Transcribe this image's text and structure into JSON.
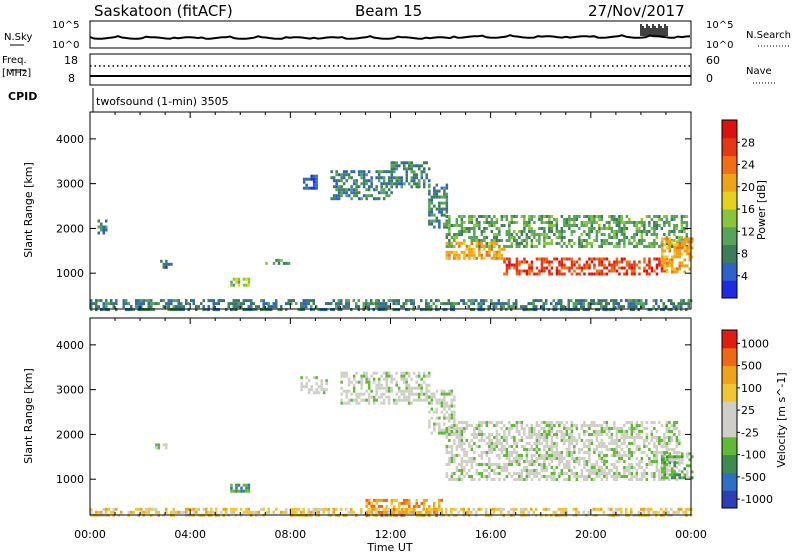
{
  "header": {
    "title": "Saskatoon (fitACF)",
    "beam": "Beam 15",
    "date": "27/Nov/2017"
  },
  "top_strip": {
    "left_label": "N.Sky",
    "left_ticks": [
      "10^5",
      "10^0"
    ],
    "right_label": "N.Search",
    "right_ticks": [
      "10^5",
      "10^0"
    ]
  },
  "freq_strip": {
    "left_label_1": "Freq.",
    "left_label_2": "[MHz]",
    "left_ticks": [
      "18",
      "8"
    ],
    "right_label": "Nave",
    "right_ticks": [
      "60",
      "0"
    ]
  },
  "cpid": {
    "label": "CPID",
    "text": "twofsound (1-min) 3505"
  },
  "chart_data": [
    {
      "type": "heatmap",
      "name": "power-panel",
      "ylabel": "Slant Range [km]",
      "xlabel": "",
      "yticks": [
        "1000",
        "2000",
        "3000",
        "4000"
      ],
      "ylim": [
        200,
        4600
      ],
      "xlim_hours": [
        0,
        24
      ],
      "colorbar": {
        "label": "Power [dB]",
        "ticks": [
          "4",
          "8",
          "12",
          "16",
          "20",
          "24",
          "28"
        ],
        "colors": [
          "#1e2be0",
          "#2e62c9",
          "#3f7d5a",
          "#58a35a",
          "#87c53f",
          "#e6d21e",
          "#f0a21a",
          "#ef6e17",
          "#e23a14",
          "#d9140f"
        ]
      },
      "regions": [
        {
          "t0": 0.0,
          "t1": 24.0,
          "r0": 200,
          "r1": 420,
          "level": 2
        },
        {
          "t0": 0.3,
          "t1": 0.6,
          "r0": 1900,
          "r1": 2200,
          "level": 2
        },
        {
          "t0": 2.8,
          "t1": 3.2,
          "r0": 1150,
          "r1": 1300,
          "level": 1
        },
        {
          "t0": 5.6,
          "t1": 6.3,
          "r0": 700,
          "r1": 900,
          "level": 4
        },
        {
          "t0": 7.0,
          "t1": 7.9,
          "r0": 1200,
          "r1": 1320,
          "level": 3
        },
        {
          "t0": 8.5,
          "t1": 9.0,
          "r0": 2900,
          "r1": 3200,
          "level": 1
        },
        {
          "t0": 9.6,
          "t1": 12.0,
          "r0": 2650,
          "r1": 3300,
          "level": 2
        },
        {
          "t0": 12.0,
          "t1": 13.5,
          "r0": 2900,
          "r1": 3500,
          "level": 2
        },
        {
          "t0": 13.5,
          "t1": 14.2,
          "r0": 2000,
          "r1": 3000,
          "level": 2
        },
        {
          "t0": 14.2,
          "t1": 23.8,
          "r0": 1600,
          "r1": 2300,
          "level": 3
        },
        {
          "t0": 14.2,
          "t1": 16.5,
          "r0": 1300,
          "r1": 1700,
          "level": 6
        },
        {
          "t0": 16.5,
          "t1": 23.0,
          "r0": 950,
          "r1": 1350,
          "level": 8
        },
        {
          "t0": 22.8,
          "t1": 24.0,
          "r0": 1050,
          "r1": 1800,
          "level": 6
        }
      ]
    },
    {
      "type": "heatmap",
      "name": "velocity-panel",
      "ylabel": "Slant Range [km]",
      "xlabel": "Time UT",
      "xticks": [
        "00:00",
        "04:00",
        "08:00",
        "12:00",
        "16:00",
        "20:00",
        "00:00"
      ],
      "yticks": [
        "1000",
        "2000",
        "3000",
        "4000"
      ],
      "ylim": [
        200,
        4600
      ],
      "xlim_hours": [
        0,
        24
      ],
      "colorbar": {
        "label": "Velocity [m s^-1]",
        "ticks": [
          "1000",
          "500",
          "100",
          "25",
          "-25",
          "-100",
          "-500",
          "-1000"
        ],
        "colors": [
          "#2c3fb5",
          "#2f6fc1",
          "#3f8a4f",
          "#62b837",
          "#cfcfc8",
          "#cfcfc8",
          "#f1c533",
          "#f0a21a",
          "#ec6a16",
          "#e01d12"
        ]
      },
      "regions": [
        {
          "t0": 0.0,
          "t1": 24.0,
          "r0": 200,
          "r1": 360,
          "level": 6
        },
        {
          "t0": 2.5,
          "t1": 3.0,
          "r0": 1700,
          "r1": 1800,
          "level": 4
        },
        {
          "t0": 5.6,
          "t1": 6.3,
          "r0": 700,
          "r1": 900,
          "level": 2
        },
        {
          "t0": 8.4,
          "t1": 9.4,
          "r0": 2900,
          "r1": 3300,
          "level": 4
        },
        {
          "t0": 10.0,
          "t1": 13.5,
          "r0": 2700,
          "r1": 3400,
          "level": 4
        },
        {
          "t0": 13.5,
          "t1": 14.5,
          "r0": 2000,
          "r1": 3000,
          "level": 4
        },
        {
          "t0": 14.2,
          "t1": 23.5,
          "r0": 1000,
          "r1": 2300,
          "level": 4
        },
        {
          "t0": 11.0,
          "t1": 14.0,
          "r0": 200,
          "r1": 560,
          "level": 7
        },
        {
          "t0": 22.8,
          "t1": 24.0,
          "r0": 1000,
          "r1": 1600,
          "level": 3
        }
      ]
    }
  ]
}
